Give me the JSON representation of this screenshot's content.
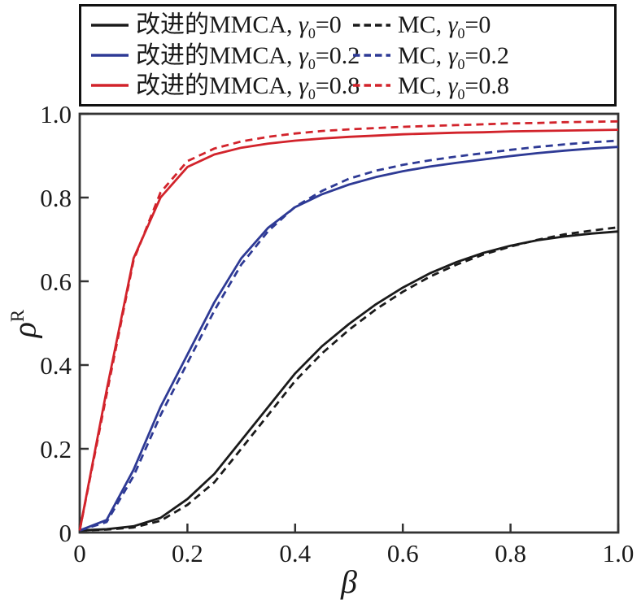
{
  "figure_title": "",
  "colors": {
    "black": "#1a1a1a",
    "blue": "#2e3a95",
    "red": "#d2232b",
    "frame": "#333333",
    "background": "#ffffff"
  },
  "legend": {
    "position": "top",
    "gamma_symbol": "γ",
    "gamma_subscript": "0",
    "separator": ", ",
    "equals": "=",
    "columns": [
      {
        "series_prefix": "改进的MMCA",
        "style": "solid"
      },
      {
        "series_prefix": "MC",
        "style": "dashed"
      }
    ],
    "rows": [
      {
        "gamma_value": "0",
        "color": "#1a1a1a"
      },
      {
        "gamma_value": "0.2",
        "color": "#2e3a95"
      },
      {
        "gamma_value": "0.8",
        "color": "#d2232b"
      }
    ]
  },
  "chart_data": {
    "type": "line",
    "title": "",
    "xlabel": "β",
    "ylabel_symbol": "ρ",
    "ylabel_superscript": "R",
    "xlim": [
      0,
      1
    ],
    "ylim": [
      0,
      1
    ],
    "grid": false,
    "legend_position": "top",
    "xticks": {
      "values": [
        0,
        0.2,
        0.4,
        0.6,
        0.8,
        1.0
      ],
      "labels": [
        "0",
        "0.2",
        "0.4",
        "0.6",
        "0.8",
        "1.0"
      ]
    },
    "yticks": {
      "values": [
        0,
        0.2,
        0.4,
        0.6,
        0.8,
        1.0
      ],
      "labels": [
        "0",
        "0.2",
        "0.4",
        "0.6",
        "0.8",
        "1.0"
      ]
    },
    "x": [
      0,
      0.05,
      0.1,
      0.15,
      0.2,
      0.25,
      0.3,
      0.35,
      0.4,
      0.45,
      0.5,
      0.55,
      0.6,
      0.65,
      0.7,
      0.75,
      0.8,
      0.85,
      0.9,
      0.95,
      1.0
    ],
    "series": [
      {
        "id": "mmca-g0",
        "name": "改进的MMCA, γ0=0",
        "color": "#1a1a1a",
        "style": "solid",
        "values": [
          0.005,
          0.008,
          0.015,
          0.035,
          0.08,
          0.14,
          0.22,
          0.3,
          0.38,
          0.445,
          0.498,
          0.545,
          0.585,
          0.619,
          0.646,
          0.668,
          0.685,
          0.698,
          0.707,
          0.714,
          0.719
        ]
      },
      {
        "id": "mc-g0",
        "name": "MC, γ0=0",
        "color": "#1a1a1a",
        "style": "dashed",
        "values": [
          0.005,
          0.007,
          0.012,
          0.028,
          0.066,
          0.12,
          0.2,
          0.281,
          0.362,
          0.428,
          0.484,
          0.533,
          0.575,
          0.611,
          0.64,
          0.664,
          0.683,
          0.699,
          0.712,
          0.721,
          0.729
        ]
      },
      {
        "id": "mmca-g02",
        "name": "改进的MMCA, γ0=0.2",
        "color": "#2e3a95",
        "style": "solid",
        "values": [
          0.005,
          0.03,
          0.15,
          0.3,
          0.425,
          0.55,
          0.655,
          0.728,
          0.777,
          0.808,
          0.831,
          0.849,
          0.863,
          0.874,
          0.883,
          0.891,
          0.899,
          0.906,
          0.912,
          0.917,
          0.921
        ]
      },
      {
        "id": "mc-g02",
        "name": "MC, γ0=0.2",
        "color": "#2e3a95",
        "style": "dashed",
        "values": [
          0.005,
          0.025,
          0.135,
          0.28,
          0.405,
          0.53,
          0.64,
          0.72,
          0.778,
          0.816,
          0.845,
          0.864,
          0.878,
          0.889,
          0.898,
          0.906,
          0.914,
          0.921,
          0.927,
          0.932,
          0.936
        ]
      },
      {
        "id": "mmca-g08",
        "name": "改进的MMCA, γ0=0.8",
        "color": "#d2232b",
        "style": "solid",
        "values": [
          0.005,
          0.34,
          0.655,
          0.8,
          0.873,
          0.903,
          0.919,
          0.929,
          0.936,
          0.941,
          0.945,
          0.948,
          0.951,
          0.953,
          0.955,
          0.956,
          0.958,
          0.959,
          0.96,
          0.961,
          0.962
        ]
      },
      {
        "id": "mc-g08",
        "name": "MC, γ0=0.8",
        "color": "#d2232b",
        "style": "dashed",
        "values": [
          0.005,
          0.33,
          0.65,
          0.812,
          0.887,
          0.917,
          0.934,
          0.945,
          0.953,
          0.959,
          0.963,
          0.966,
          0.969,
          0.971,
          0.973,
          0.975,
          0.977,
          0.978,
          0.98,
          0.981,
          0.982
        ]
      }
    ]
  }
}
